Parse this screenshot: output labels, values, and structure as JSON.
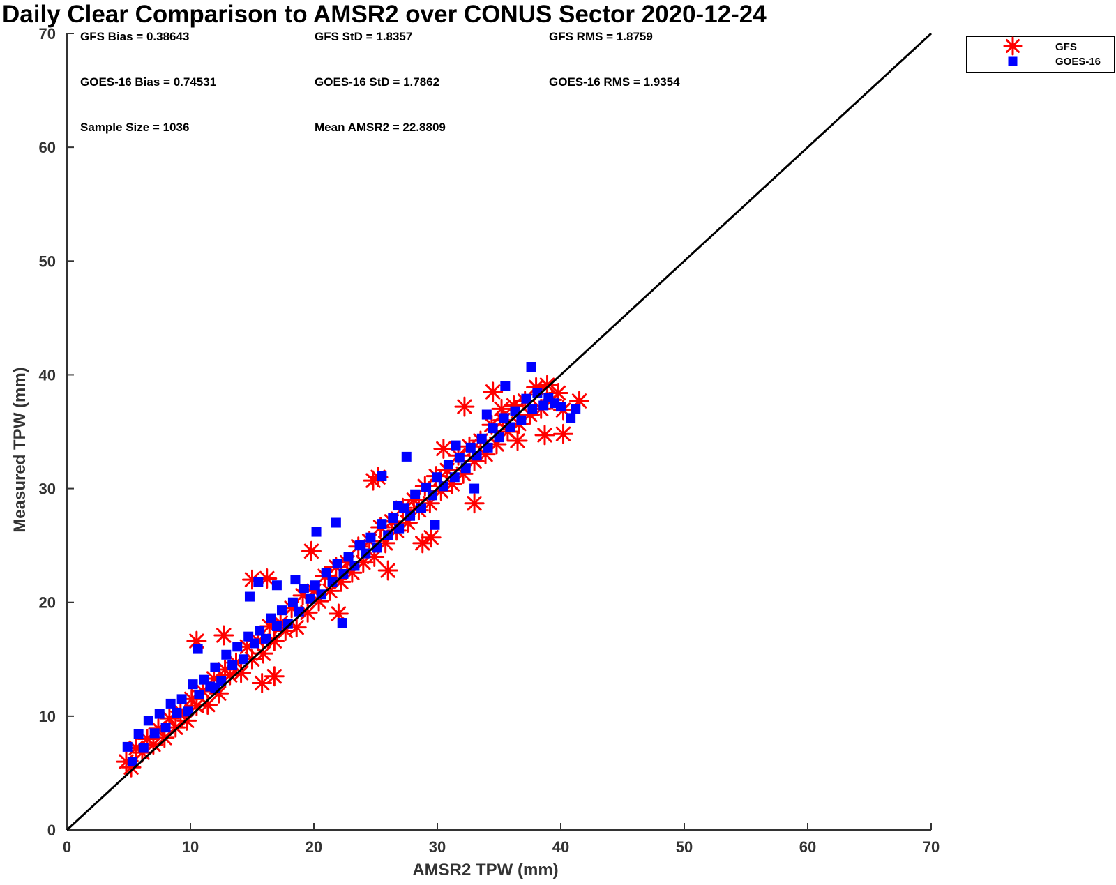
{
  "chart_data": {
    "type": "scatter",
    "title": "Daily Clear Comparison to AMSR2 over CONUS Sector 2020-12-24",
    "xlabel": "AMSR2 TPW (mm)",
    "ylabel": "Measured TPW (mm)",
    "xlim": [
      0,
      70
    ],
    "ylim": [
      0,
      70
    ],
    "xticks": [
      "0",
      "10",
      "20",
      "30",
      "40",
      "50",
      "60",
      "70"
    ],
    "yticks": [
      "0",
      "10",
      "20",
      "30",
      "40",
      "50",
      "60",
      "70"
    ],
    "grid": false,
    "legend_position": "outside-top-right",
    "reference_line": {
      "x": [
        0,
        70
      ],
      "y": [
        0,
        70
      ],
      "color": "#000000"
    },
    "stats": [
      {
        "text": "GFS Bias = 0.38643"
      },
      {
        "text": "GFS StD = 1.8357"
      },
      {
        "text": "GFS RMS = 1.8759"
      },
      {
        "text": "GOES-16 Bias = 0.74531"
      },
      {
        "text": "GOES-16 StD = 1.7862"
      },
      {
        "text": "GOES-16 RMS = 1.9354"
      },
      {
        "text": "Sample Size = 1036"
      },
      {
        "text": "Mean AMSR2 = 22.8809"
      }
    ],
    "series": [
      {
        "name": "GFS",
        "marker": "asterisk",
        "color": "#ff0000",
        "x": [
          4.8,
          5.2,
          5.6,
          6.1,
          6.5,
          7.0,
          7.4,
          7.9,
          8.3,
          8.8,
          9.2,
          9.7,
          10.1,
          10.5,
          11.0,
          11.4,
          11.9,
          12.3,
          12.8,
          13.2,
          13.7,
          14.1,
          14.6,
          15.0,
          15.5,
          15.9,
          16.4,
          16.8,
          17.3,
          17.7,
          18.2,
          18.6,
          19.1,
          19.5,
          20.0,
          20.4,
          20.9,
          21.3,
          21.8,
          22.2,
          22.7,
          23.1,
          23.6,
          24.0,
          24.5,
          24.9,
          25.4,
          25.8,
          26.3,
          26.7,
          27.2,
          27.6,
          28.1,
          28.5,
          29.0,
          29.4,
          29.9,
          30.3,
          30.8,
          31.2,
          31.7,
          32.1,
          32.6,
          33.0,
          33.5,
          33.9,
          34.4,
          34.8,
          35.3,
          35.7,
          36.2,
          36.6,
          37.1,
          37.5,
          38.0,
          38.4,
          38.9,
          39.3,
          39.8,
          40.2,
          10.5,
          12.7,
          15.0,
          16.2,
          19.8,
          24.8,
          25.2,
          30.5,
          32.2,
          33.0,
          34.5,
          38.7,
          40.2,
          41.5,
          15.8,
          16.8,
          22.0,
          26.0,
          28.8,
          29.5,
          35.2,
          36.5
        ],
        "y": [
          6.0,
          5.5,
          7.2,
          6.8,
          8.0,
          7.5,
          8.9,
          8.1,
          9.8,
          9.0,
          10.4,
          9.6,
          11.5,
          10.9,
          12.2,
          11.0,
          13.3,
          12.0,
          14.1,
          13.6,
          14.7,
          13.8,
          16.1,
          15.0,
          16.6,
          15.5,
          17.9,
          16.6,
          18.2,
          17.5,
          19.5,
          17.8,
          20.6,
          19.1,
          21.0,
          20.1,
          22.3,
          21.0,
          23.1,
          21.8,
          23.5,
          22.6,
          24.9,
          23.5,
          25.4,
          24.0,
          26.6,
          25.2,
          27.1,
          26.3,
          28.3,
          27.0,
          29.0,
          28.1,
          30.2,
          28.7,
          31.1,
          29.8,
          31.6,
          30.4,
          32.9,
          31.3,
          33.7,
          32.4,
          34.2,
          33.0,
          35.6,
          33.9,
          36.0,
          35.0,
          37.3,
          35.7,
          37.7,
          36.5,
          38.9,
          37.0,
          39.1,
          37.8,
          38.4,
          36.9,
          16.6,
          17.1,
          22.0,
          22.1,
          24.5,
          30.7,
          31.0,
          33.5,
          37.2,
          28.7,
          38.5,
          34.7,
          34.8,
          37.7,
          12.9,
          13.5,
          19.0,
          22.8,
          25.2,
          25.7,
          37.0,
          34.2
        ]
      },
      {
        "name": "GOES-16",
        "marker": "square",
        "color": "#0000ff",
        "x": [
          4.9,
          5.3,
          5.8,
          6.2,
          6.6,
          7.1,
          7.5,
          8.0,
          8.4,
          8.9,
          9.3,
          9.8,
          10.2,
          10.7,
          11.1,
          11.6,
          12.0,
          12.5,
          12.9,
          13.4,
          13.8,
          14.3,
          14.7,
          15.2,
          15.6,
          16.1,
          16.5,
          17.0,
          17.4,
          17.9,
          18.3,
          18.8,
          19.2,
          19.7,
          20.1,
          20.6,
          21.0,
          21.5,
          21.9,
          22.4,
          22.8,
          23.3,
          23.7,
          24.2,
          24.6,
          25.1,
          25.5,
          26.0,
          26.4,
          26.9,
          27.3,
          27.8,
          28.2,
          28.7,
          29.1,
          29.6,
          30.0,
          30.5,
          30.9,
          31.4,
          31.8,
          32.3,
          32.7,
          33.2,
          33.6,
          34.1,
          34.5,
          35.0,
          35.4,
          35.9,
          36.3,
          36.8,
          37.2,
          37.7,
          38.1,
          38.6,
          39.0,
          39.5,
          40.0,
          40.8,
          10.6,
          14.8,
          15.5,
          17.0,
          20.2,
          21.8,
          22.3,
          25.5,
          27.5,
          29.8,
          33.0,
          35.5,
          37.6,
          41.2,
          12.0,
          18.5,
          23.8,
          26.8,
          31.5,
          34.0
        ],
        "y": [
          7.3,
          6.0,
          8.4,
          7.2,
          9.6,
          8.5,
          10.2,
          9.0,
          11.1,
          10.3,
          11.5,
          10.4,
          12.8,
          11.9,
          13.2,
          12.6,
          14.3,
          13.1,
          15.4,
          14.5,
          16.1,
          15.0,
          17.0,
          16.4,
          17.5,
          16.8,
          18.6,
          17.9,
          19.3,
          18.1,
          20.0,
          19.2,
          21.2,
          20.3,
          21.5,
          20.7,
          22.6,
          21.8,
          23.4,
          22.5,
          24.0,
          23.2,
          25.0,
          24.3,
          25.7,
          24.8,
          26.9,
          25.9,
          27.4,
          26.5,
          28.3,
          27.6,
          29.5,
          28.3,
          30.1,
          29.4,
          31.0,
          30.2,
          32.1,
          31.0,
          32.7,
          31.8,
          33.6,
          32.9,
          34.4,
          33.6,
          35.3,
          34.5,
          36.2,
          35.4,
          36.8,
          36.0,
          37.9,
          37.0,
          38.4,
          37.3,
          38.0,
          37.5,
          37.2,
          36.2,
          15.9,
          20.5,
          21.8,
          21.5,
          26.2,
          27.0,
          18.2,
          31.1,
          32.8,
          26.8,
          30.0,
          39.0,
          40.7,
          37.0,
          12.5,
          22.0,
          25.0,
          28.5,
          33.8,
          36.5
        ]
      }
    ]
  }
}
